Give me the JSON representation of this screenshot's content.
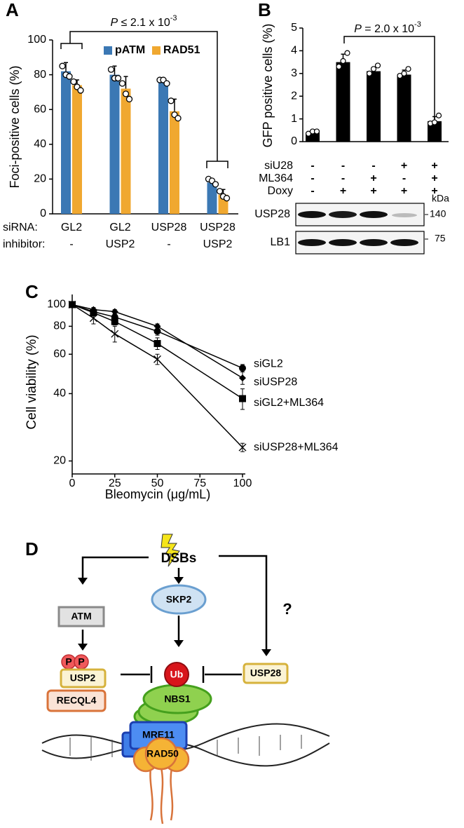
{
  "panel_labels": [
    "A",
    "B",
    "C",
    "D"
  ],
  "chart_data": [
    {
      "type": "bar",
      "y_label": "Foci-positive cells (%)",
      "row_labels": [
        "siRNA:",
        "inhibitor:"
      ],
      "categories": [
        "GL2",
        "GL2",
        "USP28",
        "USP28"
      ],
      "categories2": [
        "-",
        "USP2",
        "-",
        "USP2"
      ],
      "series": [
        {
          "name": "pATM",
          "color": "#3b78b4",
          "values": [
            82,
            80,
            76,
            18
          ],
          "errors": [
            5,
            5,
            2,
            2
          ],
          "points": [
            [
              85,
              80,
              79
            ],
            [
              83,
              78,
              78
            ],
            [
              77,
              77,
              75
            ],
            [
              20,
              19,
              17
            ]
          ]
        },
        {
          "name": "RAD51",
          "color": "#f0a830",
          "values": [
            74,
            72,
            59,
            11
          ],
          "errors": [
            3,
            7,
            7,
            3
          ],
          "points": [
            [
              76,
              73,
              71
            ],
            [
              75,
              69,
              66
            ],
            [
              65,
              57,
              55
            ],
            [
              13,
              10,
              9
            ]
          ]
        }
      ],
      "ylim": [
        0,
        100
      ],
      "yticks": [
        0,
        20,
        40,
        60,
        80,
        100
      ],
      "annotation": {
        "italic": "P",
        "text": " ≤ 2.1 x 10",
        "sup": "-3"
      }
    },
    {
      "type": "bar",
      "y_label": "GFP positive cells (%)",
      "color": "#000000",
      "values": [
        0.4,
        3.5,
        3.1,
        2.95,
        0.9
      ],
      "errors": [
        0.08,
        0.35,
        0.15,
        0.2,
        0.2
      ],
      "points": [
        [
          0.35,
          0.45,
          0.45
        ],
        [
          3.3,
          3.55,
          3.9
        ],
        [
          3.0,
          3.2,
          3.35
        ],
        [
          2.9,
          3.0,
          3.2
        ],
        [
          0.8,
          0.85,
          1.15
        ]
      ],
      "ylim": [
        0,
        5
      ],
      "yticks": [
        0,
        1,
        2,
        3,
        4,
        5
      ],
      "annotation": {
        "italic": "P",
        "text": " = 2.0 x 10",
        "sup": "-3"
      },
      "conditions": [
        {
          "label": "siU28",
          "values": [
            "-",
            "-",
            "-",
            "+",
            "+"
          ]
        },
        {
          "label": "ML364",
          "values": [
            "-",
            "-",
            "+",
            "-",
            "+"
          ]
        },
        {
          "label": "Doxy",
          "values": [
            "-",
            "+",
            "+",
            "+",
            "+"
          ]
        }
      ],
      "blot": {
        "unit": "kDa",
        "rows": [
          {
            "label": "USP28",
            "marker": "140"
          },
          {
            "label": "LB1",
            "marker": "75"
          }
        ]
      }
    },
    {
      "type": "line",
      "y_label": "Cell viability (%)",
      "x_label": "Bleomycin (μg/mL)",
      "log_y": true,
      "x": [
        0,
        12.5,
        25,
        50,
        100
      ],
      "xlim": [
        0,
        100
      ],
      "xticks": [
        0,
        25,
        50,
        75,
        100
      ],
      "ylim": [
        17.5,
        111
      ],
      "yticks": [
        20,
        40,
        60,
        80,
        100
      ],
      "series": [
        {
          "name": "siGL2",
          "color": "#000000",
          "marker": "circle",
          "values": [
            100,
            93,
            88,
            76,
            52
          ],
          "errors": [
            0,
            2,
            2,
            3,
            2
          ]
        },
        {
          "name": "siUSP28",
          "color": "#000000",
          "marker": "diamond",
          "values": [
            100,
            95,
            93,
            80,
            47
          ],
          "errors": [
            0,
            2,
            2,
            2,
            3
          ]
        },
        {
          "name": "siGL2+ML364",
          "color": "#000000",
          "marker": "square",
          "values": [
            100,
            92,
            84,
            67,
            38
          ],
          "errors": [
            0,
            3,
            3,
            4,
            4
          ]
        },
        {
          "name": "siUSP28+ML364",
          "color": "#000000",
          "marker": "x",
          "values": [
            100,
            87,
            74,
            57,
            23
          ],
          "errors": [
            0,
            5,
            6,
            3,
            1
          ]
        }
      ]
    }
  ],
  "diagram": {
    "trigger": "DSBs",
    "question": "?",
    "phospho": [
      "P",
      "P"
    ],
    "nodes": {
      "ATM": "ATM",
      "SKP2": "SKP2",
      "USP28": "USP28",
      "USP2": "USP2",
      "RECQL4": "RECQL4",
      "Ub": "Ub",
      "NBS1": "NBS1",
      "MRE11": "MRE11",
      "RAD50": "RAD50"
    }
  }
}
